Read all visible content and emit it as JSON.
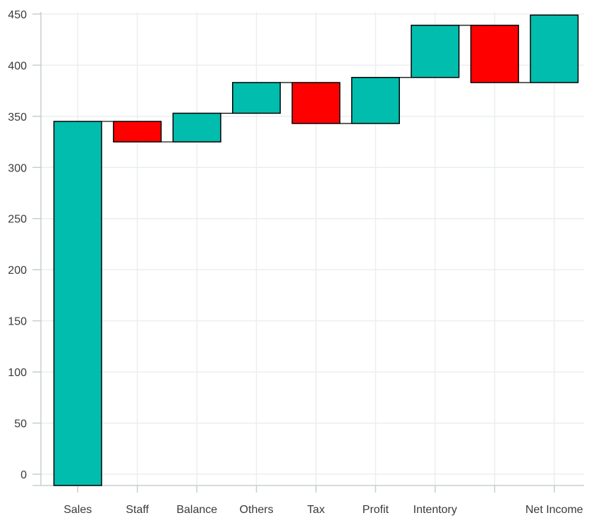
{
  "chart_data": {
    "type": "waterfall",
    "title": "",
    "xlabel": "",
    "ylabel": "",
    "ylim": [
      -11,
      452
    ],
    "yticks": [
      0,
      50,
      100,
      150,
      200,
      250,
      300,
      350,
      400,
      450
    ],
    "grid": true,
    "legend": "none",
    "colors": {
      "increase": "#00BDAE",
      "decrease": "#FF0000",
      "border": "#000000",
      "connector": "#000000",
      "grid": "#EBEEF0",
      "axis": "#C8CDD1"
    },
    "categories": [
      "Sales",
      "Staff",
      "Balance",
      "Others",
      "Tax",
      "Profit",
      "Intentory",
      "",
      "Net Income"
    ],
    "bars": [
      {
        "category": "Sales",
        "start": -11,
        "end": 345,
        "kind": "increase"
      },
      {
        "category": "Staff",
        "start": 345,
        "end": 325,
        "kind": "decrease"
      },
      {
        "category": "Balance",
        "start": 325,
        "end": 353,
        "kind": "increase"
      },
      {
        "category": "Others",
        "start": 353,
        "end": 383,
        "kind": "increase"
      },
      {
        "category": "Tax",
        "start": 383,
        "end": 343,
        "kind": "decrease"
      },
      {
        "category": "Profit",
        "start": 343,
        "end": 388,
        "kind": "increase"
      },
      {
        "category": "Intentory",
        "start": 388,
        "end": 439,
        "kind": "increase"
      },
      {
        "category": "",
        "start": 439,
        "end": 383,
        "kind": "decrease"
      },
      {
        "category": "Net Income",
        "start": 383,
        "end": 449,
        "kind": "increase"
      }
    ]
  }
}
